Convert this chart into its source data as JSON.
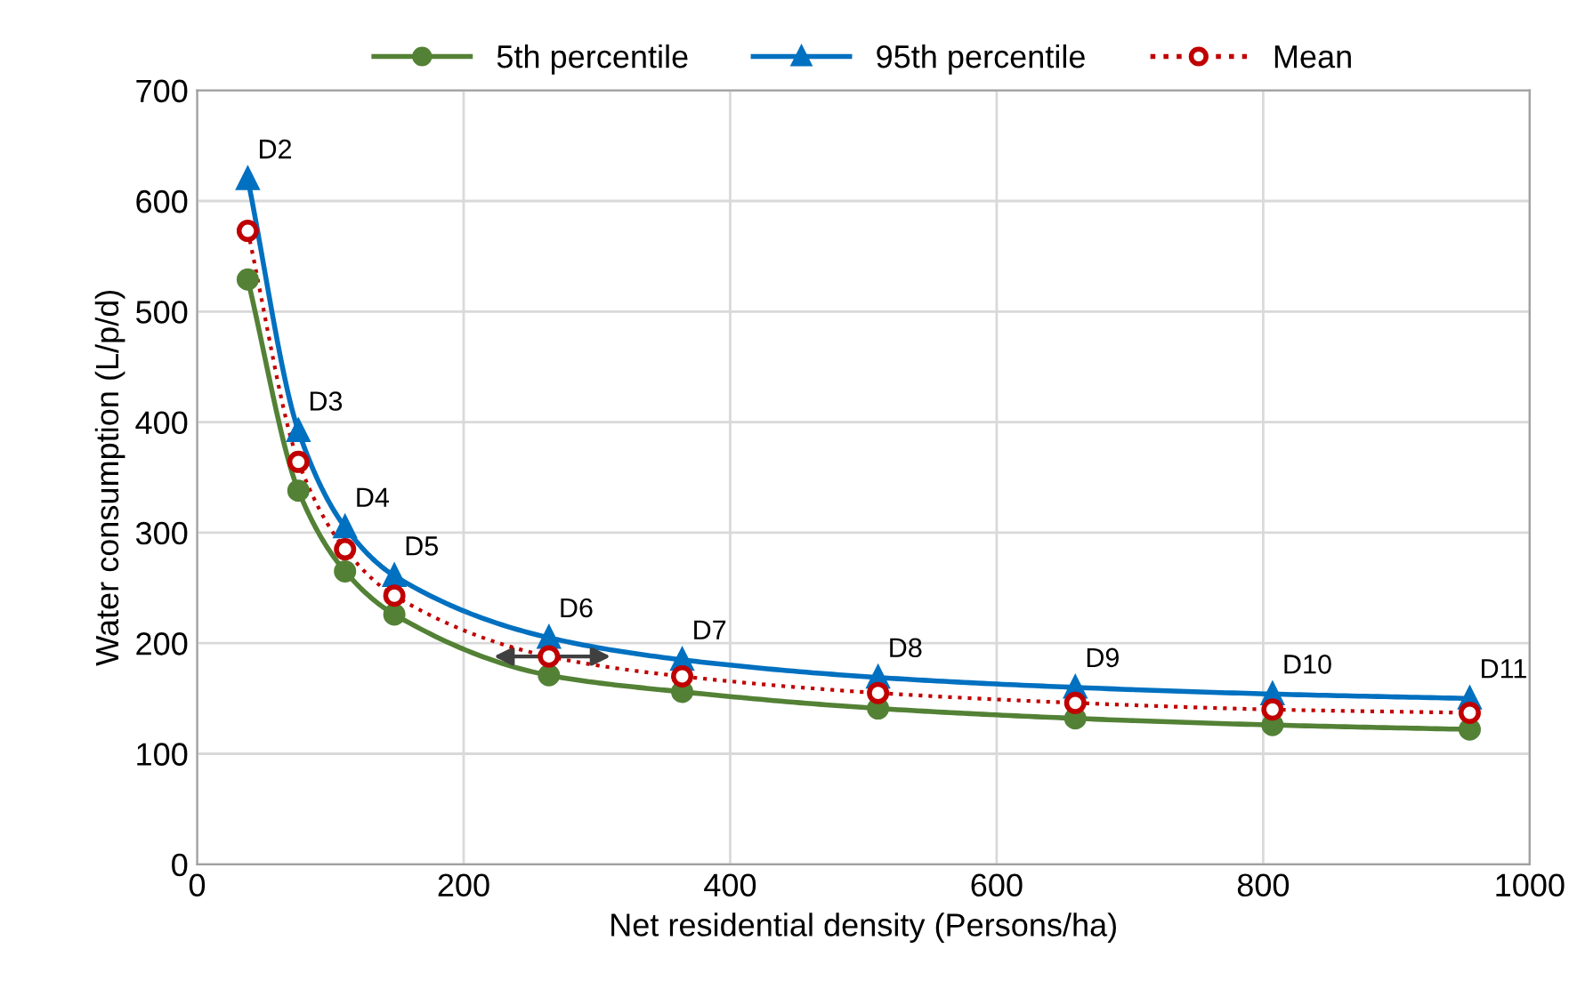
{
  "chart_data": {
    "type": "line",
    "xlabel": "Net residential density (Persons/ha)",
    "ylabel": "Water consumption (L/p/d)",
    "x": [
      38,
      76,
      111,
      148,
      264,
      364,
      511,
      659,
      807,
      955
    ],
    "series": [
      {
        "name": "5th percentile",
        "color": "#538135",
        "marker": "circle",
        "line_style": "solid",
        "values": [
          529,
          338,
          265,
          226,
          171,
          156,
          141,
          132,
          126,
          122
        ]
      },
      {
        "name": "95th percentile",
        "color": "#0070c0",
        "marker": "triangle",
        "line_style": "solid",
        "values": [
          620,
          392,
          305,
          261,
          205,
          185,
          169,
          160,
          154,
          150
        ]
      },
      {
        "name": "Mean",
        "color": "#c00000",
        "marker": "circle",
        "line_style": "dotted",
        "values": [
          573,
          364,
          285,
          243,
          188,
          170,
          155,
          146,
          140,
          137
        ]
      }
    ],
    "annotations": [
      {
        "text": "D2",
        "x": 38,
        "y": 620
      },
      {
        "text": "D3",
        "x": 76,
        "y": 392
      },
      {
        "text": "D4",
        "x": 111,
        "y": 305
      },
      {
        "text": "D5",
        "x": 148,
        "y": 261
      },
      {
        "text": "D6",
        "x": 264,
        "y": 205
      },
      {
        "text": "D7",
        "x": 364,
        "y": 185
      },
      {
        "text": "D8",
        "x": 511,
        "y": 169
      },
      {
        "text": "D9",
        "x": 659,
        "y": 160
      },
      {
        "text": "D10",
        "x": 807,
        "y": 154
      },
      {
        "text": "D11",
        "x": 955,
        "y": 150
      }
    ],
    "xlim": [
      0,
      1000
    ],
    "xticks": [
      0,
      200,
      400,
      600,
      800,
      1000
    ],
    "ylim": [
      0,
      700
    ],
    "yticks": [
      0,
      100,
      200,
      300,
      400,
      500,
      600,
      700
    ],
    "grid": true,
    "legend": "top"
  }
}
